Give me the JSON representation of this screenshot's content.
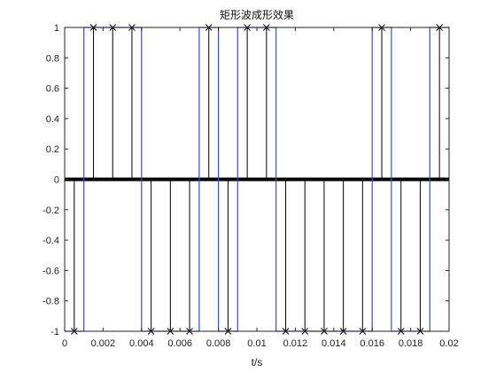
{
  "chart_data": {
    "type": "line",
    "title": "矩形波成形效果",
    "xlabel": "t/s",
    "ylabel": "",
    "xlim": [
      0,
      0.02
    ],
    "ylim": [
      -1,
      1
    ],
    "x_ticks": [
      0,
      0.002,
      0.004,
      0.006,
      0.008,
      0.01,
      0.012,
      0.014,
      0.016,
      0.018,
      0.02
    ],
    "x_tick_labels": [
      "0",
      "0.002",
      "0.004",
      "0.006",
      "0.008",
      "0.01",
      "0.012",
      "0.014",
      "0.016",
      "0.018",
      "0.02"
    ],
    "y_ticks": [
      -1,
      -0.8,
      -0.6,
      -0.4,
      -0.2,
      0,
      0.2,
      0.4,
      0.6,
      0.8,
      1
    ],
    "y_tick_labels": [
      "-1",
      "-0.8",
      "-0.6",
      "-0.4",
      "-0.2",
      "0",
      "0.2",
      "0.4",
      "0.6",
      "0.8",
      "1"
    ],
    "grid": false,
    "series": [
      {
        "kind": "step",
        "color": "#3a4fc8",
        "x": [
          0,
          0.0005,
          0.001,
          0.004,
          0.007,
          0.008,
          0.009,
          0.011,
          0.016,
          0.017,
          0.019,
          0.02
        ],
        "y": [
          -1,
          -1,
          1,
          -1,
          1,
          -1,
          1,
          -1,
          1,
          -1,
          1,
          1
        ]
      },
      {
        "kind": "stem",
        "color": "#000000",
        "marker": "x",
        "x": [
          0.0005,
          0.0015,
          0.0025,
          0.0035,
          0.0045,
          0.0055,
          0.0065,
          0.0075,
          0.0085,
          0.0095,
          0.0105,
          0.0115,
          0.0125,
          0.0135,
          0.0145,
          0.0155,
          0.0165,
          0.0175,
          0.0185,
          0.0195
        ],
        "y": [
          -1,
          1,
          1,
          1,
          -1,
          -1,
          -1,
          1,
          -1,
          1,
          1,
          -1,
          -1,
          -1,
          -1,
          -1,
          1,
          -1,
          -1,
          1
        ]
      }
    ]
  }
}
